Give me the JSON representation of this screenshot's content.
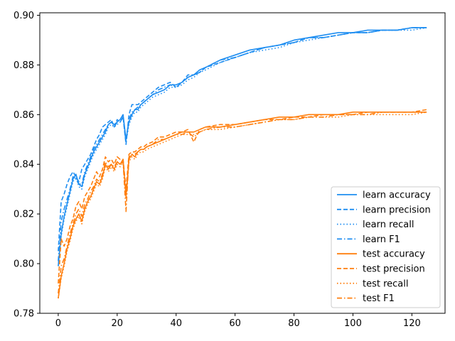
{
  "chart_data": {
    "type": "line",
    "title": "",
    "xlabel": "",
    "ylabel": "",
    "xlim": [
      -6.25,
      131.25
    ],
    "ylim": [
      0.78,
      0.901
    ],
    "xticks": [
      0,
      20,
      40,
      60,
      80,
      100,
      120
    ],
    "yticks": [
      0.78,
      0.8,
      0.82,
      0.84,
      0.86,
      0.88,
      0.9
    ],
    "xtick_labels": [
      "0",
      "20",
      "40",
      "60",
      "80",
      "100",
      "120"
    ],
    "ytick_labels": [
      "0.78",
      "0.80",
      "0.82",
      "0.84",
      "0.86",
      "0.88",
      "0.90"
    ],
    "grid": false,
    "legend_position": "lower-right",
    "colors": {
      "learn": "#1f8ef1",
      "test": "#ff7f0e"
    },
    "series": [
      {
        "name": "learn accuracy",
        "group": "learn",
        "style": "solid",
        "x": [
          0,
          1,
          2,
          3,
          4,
          5,
          6,
          7,
          8,
          9,
          10,
          11,
          12,
          13,
          14,
          15,
          16,
          17,
          18,
          19,
          20,
          21,
          22,
          23,
          24,
          25,
          26,
          27,
          28,
          29,
          30,
          32,
          34,
          36,
          38,
          40,
          42,
          44,
          46,
          48,
          50,
          55,
          60,
          65,
          70,
          75,
          80,
          85,
          90,
          95,
          100,
          105,
          110,
          115,
          120,
          125
        ],
        "y": [
          0.799,
          0.812,
          0.819,
          0.824,
          0.829,
          0.834,
          0.836,
          0.832,
          0.831,
          0.836,
          0.839,
          0.842,
          0.845,
          0.847,
          0.849,
          0.851,
          0.853,
          0.856,
          0.857,
          0.856,
          0.857,
          0.858,
          0.86,
          0.85,
          0.857,
          0.86,
          0.862,
          0.862,
          0.864,
          0.865,
          0.866,
          0.868,
          0.869,
          0.87,
          0.872,
          0.872,
          0.873,
          0.875,
          0.876,
          0.878,
          0.879,
          0.882,
          0.884,
          0.886,
          0.887,
          0.888,
          0.89,
          0.891,
          0.892,
          0.893,
          0.893,
          0.894,
          0.894,
          0.894,
          0.895,
          0.895
        ]
      },
      {
        "name": "learn precision",
        "group": "learn",
        "style": "dashed",
        "x": [
          0,
          1,
          2,
          3,
          4,
          5,
          6,
          7,
          8,
          9,
          10,
          11,
          12,
          13,
          14,
          15,
          16,
          17,
          18,
          19,
          20,
          21,
          22,
          23,
          24,
          25,
          26,
          27,
          28,
          29,
          30,
          32,
          34,
          36,
          38,
          40,
          42,
          44,
          46,
          48,
          50,
          55,
          60,
          65,
          70,
          75,
          80,
          85,
          90,
          95,
          100,
          105,
          110,
          115,
          120,
          125
        ],
        "y": [
          0.805,
          0.825,
          0.828,
          0.832,
          0.835,
          0.837,
          0.835,
          0.833,
          0.838,
          0.84,
          0.842,
          0.844,
          0.847,
          0.85,
          0.852,
          0.855,
          0.856,
          0.857,
          0.858,
          0.855,
          0.858,
          0.857,
          0.859,
          0.848,
          0.86,
          0.864,
          0.864,
          0.864,
          0.865,
          0.866,
          0.867,
          0.869,
          0.871,
          0.872,
          0.873,
          0.871,
          0.873,
          0.876,
          0.876,
          0.877,
          0.879,
          0.881,
          0.883,
          0.885,
          0.887,
          0.888,
          0.889,
          0.891,
          0.891,
          0.892,
          0.893,
          0.893,
          0.894,
          0.894,
          0.895,
          0.895
        ]
      },
      {
        "name": "learn recall",
        "group": "learn",
        "style": "dotted",
        "x": [
          0,
          1,
          2,
          3,
          4,
          5,
          6,
          7,
          8,
          9,
          10,
          11,
          12,
          13,
          14,
          15,
          16,
          17,
          18,
          19,
          20,
          21,
          22,
          23,
          24,
          25,
          26,
          27,
          28,
          29,
          30,
          32,
          34,
          36,
          38,
          40,
          42,
          44,
          46,
          48,
          50,
          55,
          60,
          65,
          70,
          75,
          80,
          85,
          90,
          95,
          100,
          105,
          110,
          115,
          120,
          125
        ],
        "y": [
          0.799,
          0.811,
          0.818,
          0.823,
          0.828,
          0.833,
          0.835,
          0.831,
          0.83,
          0.835,
          0.838,
          0.841,
          0.844,
          0.846,
          0.848,
          0.85,
          0.852,
          0.855,
          0.856,
          0.855,
          0.856,
          0.857,
          0.859,
          0.849,
          0.856,
          0.859,
          0.861,
          0.861,
          0.863,
          0.864,
          0.865,
          0.867,
          0.868,
          0.869,
          0.871,
          0.871,
          0.872,
          0.874,
          0.875,
          0.877,
          0.878,
          0.881,
          0.883,
          0.885,
          0.886,
          0.887,
          0.889,
          0.89,
          0.891,
          0.892,
          0.893,
          0.893,
          0.894,
          0.894,
          0.894,
          0.895
        ]
      },
      {
        "name": "learn F1",
        "group": "learn",
        "style": "dashdot",
        "x": [
          0,
          1,
          2,
          3,
          4,
          5,
          6,
          7,
          8,
          9,
          10,
          11,
          12,
          13,
          14,
          15,
          16,
          17,
          18,
          19,
          20,
          21,
          22,
          23,
          24,
          25,
          26,
          27,
          28,
          29,
          30,
          32,
          34,
          36,
          38,
          40,
          42,
          44,
          46,
          48,
          50,
          55,
          60,
          65,
          70,
          75,
          80,
          85,
          90,
          95,
          100,
          105,
          110,
          115,
          120,
          125
        ],
        "y": [
          0.801,
          0.817,
          0.822,
          0.826,
          0.83,
          0.835,
          0.834,
          0.832,
          0.832,
          0.837,
          0.84,
          0.843,
          0.846,
          0.848,
          0.85,
          0.852,
          0.854,
          0.856,
          0.857,
          0.855,
          0.857,
          0.857,
          0.859,
          0.849,
          0.858,
          0.861,
          0.862,
          0.863,
          0.864,
          0.865,
          0.866,
          0.868,
          0.87,
          0.871,
          0.872,
          0.871,
          0.873,
          0.875,
          0.876,
          0.877,
          0.879,
          0.882,
          0.883,
          0.885,
          0.887,
          0.888,
          0.889,
          0.891,
          0.891,
          0.892,
          0.893,
          0.893,
          0.894,
          0.894,
          0.895,
          0.895
        ]
      },
      {
        "name": "test accuracy",
        "group": "test",
        "style": "solid",
        "x": [
          0,
          1,
          2,
          3,
          4,
          5,
          6,
          7,
          8,
          9,
          10,
          11,
          12,
          13,
          14,
          15,
          16,
          17,
          18,
          19,
          20,
          21,
          22,
          23,
          24,
          25,
          26,
          27,
          28,
          29,
          30,
          32,
          34,
          36,
          38,
          40,
          42,
          44,
          46,
          48,
          50,
          55,
          60,
          65,
          70,
          75,
          80,
          85,
          90,
          95,
          100,
          105,
          110,
          115,
          120,
          125
        ],
        "y": [
          0.786,
          0.795,
          0.8,
          0.806,
          0.81,
          0.815,
          0.818,
          0.82,
          0.817,
          0.822,
          0.825,
          0.827,
          0.83,
          0.833,
          0.832,
          0.835,
          0.84,
          0.838,
          0.84,
          0.838,
          0.841,
          0.84,
          0.842,
          0.827,
          0.842,
          0.844,
          0.843,
          0.845,
          0.846,
          0.846,
          0.847,
          0.848,
          0.849,
          0.85,
          0.851,
          0.852,
          0.853,
          0.853,
          0.853,
          0.854,
          0.855,
          0.855,
          0.856,
          0.857,
          0.858,
          0.859,
          0.859,
          0.86,
          0.86,
          0.86,
          0.861,
          0.861,
          0.861,
          0.861,
          0.861,
          0.861
        ]
      },
      {
        "name": "test precision",
        "group": "test",
        "style": "dashed",
        "x": [
          0,
          1,
          2,
          3,
          4,
          5,
          6,
          7,
          8,
          9,
          10,
          11,
          12,
          13,
          14,
          15,
          16,
          17,
          18,
          19,
          20,
          21,
          22,
          23,
          24,
          25,
          26,
          27,
          28,
          29,
          30,
          32,
          34,
          36,
          38,
          40,
          42,
          44,
          46,
          48,
          50,
          55,
          60,
          65,
          70,
          75,
          80,
          85,
          90,
          95,
          100,
          105,
          110,
          115,
          120,
          125
        ],
        "y": [
          0.792,
          0.81,
          0.807,
          0.81,
          0.815,
          0.818,
          0.823,
          0.825,
          0.822,
          0.827,
          0.829,
          0.831,
          0.834,
          0.837,
          0.835,
          0.838,
          0.843,
          0.841,
          0.842,
          0.84,
          0.843,
          0.842,
          0.842,
          0.83,
          0.844,
          0.845,
          0.845,
          0.846,
          0.847,
          0.847,
          0.848,
          0.849,
          0.851,
          0.851,
          0.852,
          0.853,
          0.853,
          0.854,
          0.849,
          0.854,
          0.855,
          0.856,
          0.856,
          0.857,
          0.858,
          0.858,
          0.859,
          0.859,
          0.86,
          0.86,
          0.86,
          0.861,
          0.861,
          0.861,
          0.861,
          0.862
        ]
      },
      {
        "name": "test recall",
        "group": "test",
        "style": "dotted",
        "x": [
          0,
          1,
          2,
          3,
          4,
          5,
          6,
          7,
          8,
          9,
          10,
          11,
          12,
          13,
          14,
          15,
          16,
          17,
          18,
          19,
          20,
          21,
          22,
          23,
          24,
          25,
          26,
          27,
          28,
          29,
          30,
          32,
          34,
          36,
          38,
          40,
          42,
          44,
          46,
          48,
          50,
          55,
          60,
          65,
          70,
          75,
          80,
          85,
          90,
          95,
          100,
          105,
          110,
          115,
          120,
          125
        ],
        "y": [
          0.786,
          0.794,
          0.799,
          0.805,
          0.809,
          0.814,
          0.817,
          0.819,
          0.816,
          0.821,
          0.824,
          0.826,
          0.829,
          0.832,
          0.831,
          0.834,
          0.839,
          0.837,
          0.839,
          0.837,
          0.84,
          0.839,
          0.841,
          0.826,
          0.841,
          0.843,
          0.842,
          0.844,
          0.845,
          0.845,
          0.846,
          0.847,
          0.848,
          0.849,
          0.85,
          0.851,
          0.852,
          0.852,
          0.852,
          0.853,
          0.854,
          0.854,
          0.855,
          0.856,
          0.857,
          0.858,
          0.858,
          0.859,
          0.859,
          0.859,
          0.86,
          0.86,
          0.86,
          0.86,
          0.86,
          0.861
        ]
      },
      {
        "name": "test F1",
        "group": "test",
        "style": "dashdot",
        "x": [
          0,
          1,
          2,
          3,
          4,
          5,
          6,
          7,
          8,
          9,
          10,
          11,
          12,
          13,
          14,
          15,
          16,
          17,
          18,
          19,
          20,
          21,
          22,
          23,
          24,
          25,
          26,
          27,
          28,
          29,
          30,
          32,
          34,
          36,
          38,
          40,
          42,
          44,
          46,
          48,
          50,
          55,
          60,
          65,
          70,
          75,
          80,
          85,
          90,
          95,
          100,
          105,
          110,
          115,
          120,
          125
        ],
        "y": [
          0.788,
          0.799,
          0.802,
          0.807,
          0.812,
          0.816,
          0.82,
          0.822,
          0.819,
          0.824,
          0.826,
          0.829,
          0.831,
          0.834,
          0.833,
          0.836,
          0.841,
          0.839,
          0.84,
          0.839,
          0.841,
          0.84,
          0.841,
          0.821,
          0.843,
          0.844,
          0.844,
          0.845,
          0.846,
          0.846,
          0.847,
          0.848,
          0.85,
          0.85,
          0.851,
          0.852,
          0.852,
          0.853,
          0.851,
          0.853,
          0.854,
          0.855,
          0.855,
          0.856,
          0.857,
          0.858,
          0.858,
          0.859,
          0.859,
          0.86,
          0.86,
          0.86,
          0.861,
          0.861,
          0.861,
          0.861
        ]
      }
    ]
  }
}
